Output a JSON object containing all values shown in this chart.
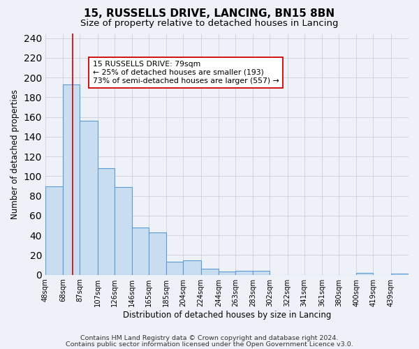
{
  "title": "15, RUSSELLS DRIVE, LANCING, BN15 8BN",
  "subtitle": "Size of property relative to detached houses in Lancing",
  "xlabel": "Distribution of detached houses by size in Lancing",
  "ylabel": "Number of detached properties",
  "bar_edges": [
    48,
    68,
    87,
    107,
    126,
    146,
    165,
    185,
    204,
    224,
    244,
    263,
    283,
    302,
    322,
    341,
    361,
    380,
    400,
    419,
    439,
    459
  ],
  "bar_heights": [
    90,
    193,
    156,
    108,
    89,
    48,
    43,
    13,
    15,
    6,
    3,
    4,
    4,
    0,
    0,
    0,
    0,
    0,
    2,
    0,
    1
  ],
  "bar_color": "#c9ddf0",
  "bar_edge_color": "#5b9bd5",
  "bar_linewidth": 0.8,
  "vline_x": 79,
  "vline_color": "#cc0000",
  "vline_linewidth": 1.2,
  "ylim": [
    0,
    245
  ],
  "yticks": [
    0,
    20,
    40,
    60,
    80,
    100,
    120,
    140,
    160,
    180,
    200,
    220,
    240
  ],
  "tick_labels": [
    "48sqm",
    "68sqm",
    "87sqm",
    "107sqm",
    "126sqm",
    "146sqm",
    "165sqm",
    "185sqm",
    "204sqm",
    "224sqm",
    "244sqm",
    "263sqm",
    "283sqm",
    "302sqm",
    "322sqm",
    "341sqm",
    "361sqm",
    "380sqm",
    "400sqm",
    "419sqm",
    "439sqm"
  ],
  "annotation_title": "15 RUSSELLS DRIVE: 79sqm",
  "annotation_line1": "← 25% of detached houses are smaller (193)",
  "annotation_line2": "73% of semi-detached houses are larger (557) →",
  "annotation_box_color": "#ffffff",
  "annotation_box_edge": "#cc0000",
  "footer1": "Contains HM Land Registry data © Crown copyright and database right 2024.",
  "footer2": "Contains public sector information licensed under the Open Government Licence v3.0.",
  "bg_color": "#eef2f8",
  "plot_bg_color": "#eef2f8",
  "title_fontsize": 11,
  "subtitle_fontsize": 9.5,
  "axis_label_fontsize": 8.5,
  "tick_fontsize": 7.2,
  "footer_fontsize": 6.8
}
